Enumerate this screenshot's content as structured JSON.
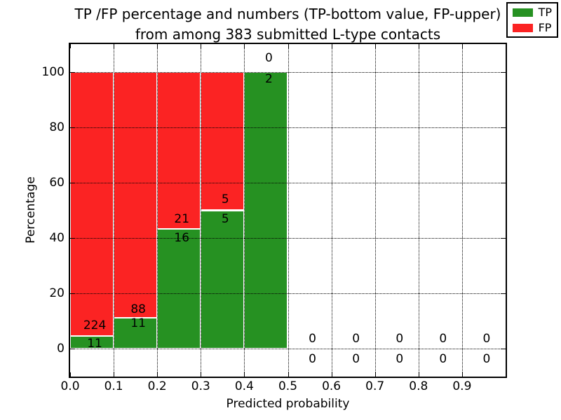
{
  "title": {
    "line1": "TP /FP percentage and numbers (TP-bottom value, FP-upper)",
    "line2": "from among 383 submitted L-type contacts"
  },
  "total_contacts": 383,
  "chart_data": {
    "type": "bar",
    "stacked": true,
    "units": "percent",
    "title": "TP /FP percentage and numbers (TP-bottom value, FP-upper)\nfrom among 383 submitted L-type contacts",
    "xlabel": "Predicted probability",
    "ylabel": "Percentage",
    "xlim": [
      0.0,
      1.0
    ],
    "ylim": [
      -10,
      110
    ],
    "xticks": [
      "0.0",
      "0.1",
      "0.2",
      "0.3",
      "0.4",
      "0.5",
      "0.6",
      "0.7",
      "0.8",
      "0.9"
    ],
    "yticks": [
      0,
      20,
      40,
      60,
      80,
      100
    ],
    "grid": true,
    "legend_position": "upper right",
    "colors": {
      "tp": "#269122",
      "fp": "#fb2323"
    },
    "legend": [
      {
        "label": "TP",
        "color": "#269122"
      },
      {
        "label": "FP",
        "color": "#fb2323"
      }
    ],
    "bins": [
      {
        "range": [
          0.0,
          0.1
        ],
        "tp": 11,
        "fp": 224,
        "tp_pct": 4.68,
        "fp_pct": 95.32
      },
      {
        "range": [
          0.1,
          0.2
        ],
        "tp": 11,
        "fp": 88,
        "tp_pct": 11.11,
        "fp_pct": 88.89
      },
      {
        "range": [
          0.2,
          0.3
        ],
        "tp": 16,
        "fp": 21,
        "tp_pct": 43.24,
        "fp_pct": 56.76
      },
      {
        "range": [
          0.3,
          0.4
        ],
        "tp": 5,
        "fp": 5,
        "tp_pct": 50.0,
        "fp_pct": 50.0
      },
      {
        "range": [
          0.4,
          0.5
        ],
        "tp": 2,
        "fp": 0,
        "tp_pct": 100.0,
        "fp_pct": 0.0
      },
      {
        "range": [
          0.5,
          0.6
        ],
        "tp": 0,
        "fp": 0,
        "tp_pct": 0,
        "fp_pct": 0
      },
      {
        "range": [
          0.6,
          0.7
        ],
        "tp": 0,
        "fp": 0,
        "tp_pct": 0,
        "fp_pct": 0
      },
      {
        "range": [
          0.7,
          0.8
        ],
        "tp": 0,
        "fp": 0,
        "tp_pct": 0,
        "fp_pct": 0
      },
      {
        "range": [
          0.8,
          0.9
        ],
        "tp": 0,
        "fp": 0,
        "tp_pct": 0,
        "fp_pct": 0
      },
      {
        "range": [
          0.9,
          1.0
        ],
        "tp": 0,
        "fp": 0,
        "tp_pct": 0,
        "fp_pct": 0
      }
    ],
    "annotations": [
      {
        "x": 0.05,
        "y": 8.4,
        "text": "224"
      },
      {
        "x": 0.05,
        "y": 2.0,
        "text": "11"
      },
      {
        "x": 0.15,
        "y": 14.3,
        "text": "88"
      },
      {
        "x": 0.15,
        "y": 9.2,
        "text": "11"
      },
      {
        "x": 0.25,
        "y": 46.9,
        "text": "21"
      },
      {
        "x": 0.25,
        "y": 40.0,
        "text": "16"
      },
      {
        "x": 0.35,
        "y": 53.9,
        "text": "5"
      },
      {
        "x": 0.35,
        "y": 46.9,
        "text": "5"
      },
      {
        "x": 0.45,
        "y": 105.0,
        "text": "0"
      },
      {
        "x": 0.45,
        "y": 97.4,
        "text": "2"
      },
      {
        "x": 0.55,
        "y": 3.6,
        "text": "0"
      },
      {
        "x": 0.55,
        "y": -3.7,
        "text": "0"
      },
      {
        "x": 0.65,
        "y": 3.6,
        "text": "0"
      },
      {
        "x": 0.65,
        "y": -3.7,
        "text": "0"
      },
      {
        "x": 0.75,
        "y": 3.6,
        "text": "0"
      },
      {
        "x": 0.75,
        "y": -3.7,
        "text": "0"
      },
      {
        "x": 0.85,
        "y": 3.6,
        "text": "0"
      },
      {
        "x": 0.85,
        "y": -3.7,
        "text": "0"
      },
      {
        "x": 0.95,
        "y": 3.6,
        "text": "0"
      },
      {
        "x": 0.95,
        "y": -3.7,
        "text": "0"
      }
    ]
  }
}
